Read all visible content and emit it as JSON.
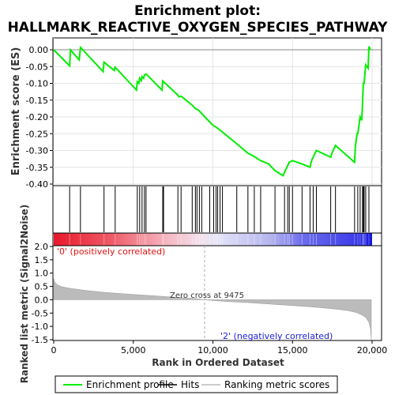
{
  "title_line1": "Enrichment plot:",
  "title_line2": "HALLMARK_REACTIVE_OXYGEN_SPECIES_PATHWAY",
  "chart_data": {
    "type": "line",
    "es_panel": {
      "ylabel": "Enrichment score (ES)",
      "ylim": [
        -0.4,
        0.02
      ],
      "yticks": [
        0.0,
        -0.05,
        -0.1,
        -0.15,
        -0.2,
        -0.25,
        -0.3,
        -0.35,
        -0.4
      ],
      "ytick_labels": [
        "0.00",
        "-0.05",
        "-0.10",
        "-0.15",
        "-0.20",
        "-0.25",
        "-0.30",
        "-0.35",
        "-0.40"
      ],
      "series": [
        {
          "name": "Enrichment profile",
          "color": "#00ee00",
          "x": [
            0,
            1000,
            1050,
            1600,
            1680,
            3100,
            3160,
            3800,
            3860,
            5200,
            5250,
            5350,
            5400,
            5500,
            5550,
            5650,
            5700,
            5800,
            6800,
            6850,
            7800,
            7850,
            8000,
            8700,
            8900,
            9100,
            9300,
            9500,
            10000,
            10200,
            10400,
            10600,
            11500,
            12200,
            12600,
            13000,
            13500,
            13900,
            14400,
            14500,
            14600,
            14700,
            14800,
            15000,
            15600,
            16100,
            16200,
            16300,
            16400,
            16500,
            17400,
            17500,
            17700,
            18900,
            18950,
            19050,
            19100,
            19250,
            19350,
            19400,
            19450,
            19500,
            19600,
            19750,
            19800,
            19900
          ],
          "y": [
            0.0,
            -0.048,
            0.0,
            -0.03,
            0.007,
            -0.065,
            -0.037,
            -0.062,
            -0.052,
            -0.12,
            -0.095,
            -0.1,
            -0.085,
            -0.092,
            -0.08,
            -0.085,
            -0.075,
            -0.072,
            -0.12,
            -0.093,
            -0.135,
            -0.14,
            -0.138,
            -0.165,
            -0.175,
            -0.18,
            -0.19,
            -0.2,
            -0.225,
            -0.23,
            -0.238,
            -0.245,
            -0.28,
            -0.308,
            -0.318,
            -0.33,
            -0.34,
            -0.36,
            -0.375,
            -0.365,
            -0.355,
            -0.345,
            -0.335,
            -0.33,
            -0.34,
            -0.35,
            -0.33,
            -0.32,
            -0.31,
            -0.3,
            -0.32,
            -0.305,
            -0.285,
            -0.335,
            -0.29,
            -0.25,
            -0.25,
            -0.2,
            -0.21,
            -0.16,
            -0.1,
            -0.1,
            -0.045,
            -0.055,
            0.01,
            0.0
          ]
        }
      ],
      "hit_positions": [
        1000,
        1680,
        3160,
        3860,
        5250,
        5400,
        5550,
        5700,
        5800,
        6850,
        6900,
        7800,
        8000,
        8700,
        8900,
        9000,
        9150,
        9300,
        9800,
        10050,
        10200,
        10300,
        10450,
        10600,
        11500,
        12200,
        12600,
        13000,
        13900,
        14500,
        14700,
        14800,
        15000,
        15600,
        16100,
        16300,
        16500,
        17400,
        17700,
        18900,
        19100,
        19250,
        19400,
        19450,
        19500,
        19600,
        19800
      ]
    },
    "metric_panel": {
      "ylabel": "Ranked list metric (Signal2Noise)",
      "xlabel": "Rank in Ordered Dataset",
      "xlim": [
        0,
        20000
      ],
      "xticks": [
        0,
        5000,
        10000,
        15000,
        20000
      ],
      "xtick_labels": [
        "0",
        "5,000",
        "10,000",
        "15,000",
        "20,000"
      ],
      "ylim": [
        -1.55,
        2.15
      ],
      "yticks": [
        2.0,
        1.5,
        1.0,
        0.5,
        0.0,
        -0.5,
        -1.0,
        -1.5
      ],
      "ytick_labels": [
        "2.0",
        "1.5",
        "1.0",
        "0.5",
        "0.0",
        "-0.5",
        "-1.0",
        "-1.5"
      ],
      "x": [
        0,
        50,
        200,
        500,
        1000,
        2000,
        3000,
        4000,
        5000,
        6000,
        7000,
        8000,
        9000,
        9475,
        10000,
        11000,
        12000,
        13000,
        14000,
        15000,
        16000,
        17000,
        18000,
        18500,
        19000,
        19300,
        19600,
        19800,
        19900,
        19950
      ],
      "values": [
        0.8,
        0.68,
        0.57,
        0.49,
        0.43,
        0.35,
        0.29,
        0.24,
        0.2,
        0.16,
        0.12,
        0.08,
        0.04,
        0.0,
        -0.03,
        -0.07,
        -0.1,
        -0.14,
        -0.18,
        -0.22,
        -0.26,
        -0.31,
        -0.37,
        -0.41,
        -0.48,
        -0.55,
        -0.66,
        -0.85,
        -1.1,
        -1.5
      ],
      "zero_cross_label": "Zero cross at 9475",
      "zero_cross": 9475,
      "pos_label": "'0' (positively correlated)",
      "neg_label": "'2' (negatively correlated)"
    },
    "legend": {
      "placement": "bottom",
      "items": [
        {
          "label": "Enrichment profile",
          "color": "#00ee00",
          "kind": "line"
        },
        {
          "label": "Hits",
          "color": "#000000",
          "kind": "line"
        },
        {
          "label": "Ranking metric scores",
          "color": "#bbbbbb",
          "kind": "line"
        }
      ]
    }
  }
}
